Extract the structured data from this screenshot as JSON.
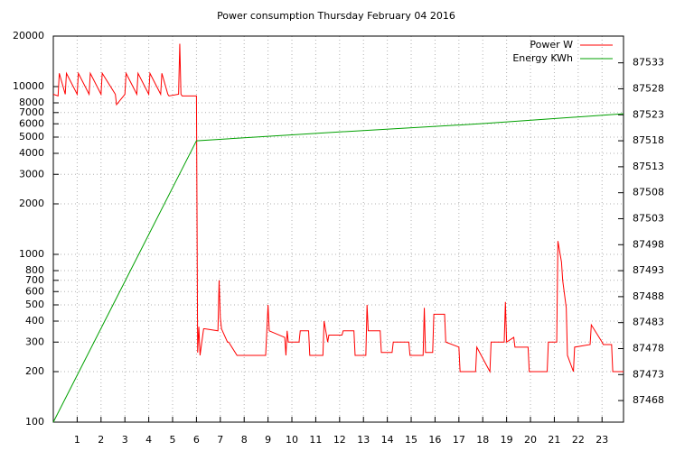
{
  "chart_data": {
    "type": "line",
    "title": "Power consumption Thursday February 04 2016",
    "log_y": true,
    "grid": true,
    "legend": "top-right",
    "xlim": [
      0,
      23.9
    ],
    "xticks": [
      1,
      2,
      3,
      4,
      5,
      6,
      7,
      8,
      9,
      10,
      11,
      12,
      13,
      14,
      15,
      16,
      17,
      18,
      19,
      20,
      21,
      22,
      23
    ],
    "ylim": [
      100,
      20000
    ],
    "yticks": [
      100,
      200,
      300,
      400,
      500,
      600,
      700,
      800,
      1000,
      2000,
      3000,
      4000,
      5000,
      6000,
      7000,
      8000,
      10000,
      20000
    ],
    "y2lim": [
      87463.85,
      87538.15
    ],
    "y2ticks": [
      87468,
      87473,
      87478,
      87483,
      87488,
      87493,
      87498,
      87503,
      87508,
      87513,
      87518,
      87523,
      87528,
      87533
    ],
    "series": [
      {
        "name": "Power W",
        "color": "#ff0000",
        "x": [
          0,
          0.2,
          0.25,
          0.5,
          0.55,
          1.0,
          1.05,
          1.5,
          1.55,
          2.0,
          2.05,
          2.6,
          2.65,
          3.0,
          3.05,
          3.5,
          3.55,
          4.0,
          4.05,
          4.5,
          4.55,
          4.8,
          4.85,
          5.25,
          5.3,
          5.35,
          5.4,
          6.0,
          6.05,
          6.1,
          6.15,
          6.3,
          6.35,
          6.9,
          6.95,
          7.0,
          7.05,
          7.3,
          7.35,
          7.7,
          7.75,
          8.9,
          8.95,
          9.0,
          9.05,
          9.7,
          9.75,
          9.8,
          9.85,
          10.3,
          10.35,
          10.7,
          10.75,
          11.3,
          11.35,
          11.5,
          11.55,
          12.1,
          12.15,
          12.6,
          12.65,
          13.1,
          13.15,
          13.2,
          13.7,
          13.75,
          14.2,
          14.25,
          14.9,
          14.95,
          15.5,
          15.55,
          15.6,
          15.9,
          15.95,
          16.4,
          16.45,
          17.0,
          17.05,
          17.7,
          17.75,
          18.3,
          18.35,
          18.9,
          18.95,
          19.0,
          19.3,
          19.35,
          19.9,
          19.95,
          20.7,
          20.75,
          21.1,
          21.15,
          21.3,
          21.35,
          21.5,
          21.55,
          21.8,
          21.85,
          22.5,
          22.55,
          23.0,
          23.05,
          23.4,
          23.45,
          23.9
        ],
        "values": [
          9000,
          8800,
          12000,
          9000,
          12000,
          9000,
          12000,
          9000,
          12000,
          9000,
          12000,
          9000,
          7800,
          9000,
          12000,
          9000,
          12000,
          9000,
          12000,
          9000,
          12000,
          9000,
          8800,
          9000,
          18000,
          9000,
          8800,
          8800,
          260,
          370,
          250,
          360,
          360,
          350,
          700,
          420,
          360,
          300,
          300,
          250,
          250,
          250,
          350,
          500,
          350,
          320,
          250,
          350,
          300,
          300,
          350,
          350,
          250,
          250,
          400,
          300,
          330,
          330,
          350,
          350,
          250,
          250,
          500,
          350,
          350,
          260,
          260,
          300,
          300,
          250,
          250,
          480,
          260,
          260,
          440,
          440,
          300,
          280,
          200,
          200,
          280,
          200,
          300,
          300,
          520,
          300,
          320,
          280,
          280,
          200,
          200,
          300,
          300,
          1200,
          900,
          700,
          480,
          250,
          200,
          280,
          290,
          380,
          300,
          290,
          290,
          200,
          200
        ]
      },
      {
        "name": "Energy KWh",
        "color": "#00a000",
        "axis": "y2",
        "x": [
          0,
          6,
          12,
          18,
          23.9
        ],
        "values": [
          87463.85,
          87518,
          87519.7,
          87521.3,
          87523.2
        ]
      }
    ]
  }
}
